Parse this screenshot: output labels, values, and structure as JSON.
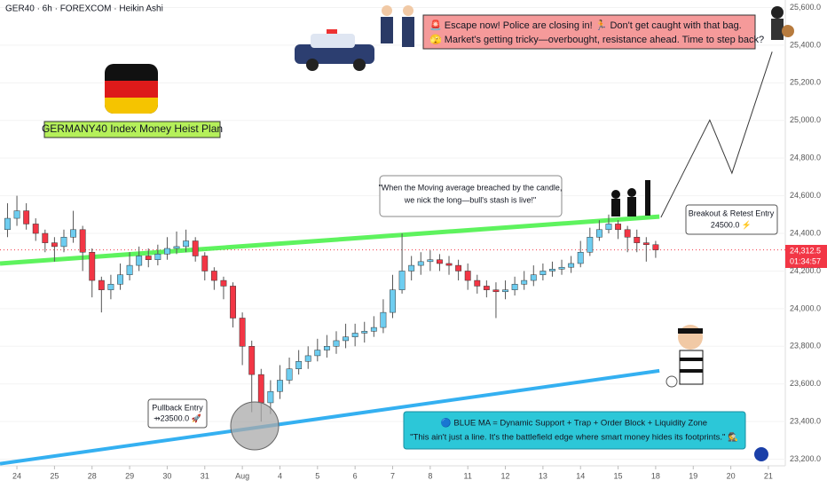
{
  "chart_data": {
    "type": "candlestick",
    "header": "GER40 · 6h · FOREXCOM · Heikin Ashi",
    "x": [
      -0.25,
      0,
      0.25,
      0.5,
      0.75,
      1,
      1.25,
      1.5,
      1.75,
      2,
      2.25,
      2.5,
      2.75,
      3,
      3.25,
      3.5,
      3.75,
      4,
      4.25,
      4.5,
      4.75,
      5,
      5.25,
      5.5,
      5.75,
      6,
      6.25,
      6.5,
      6.75,
      7,
      7.25,
      7.5,
      7.75,
      8,
      8.25,
      8.5,
      8.75,
      9,
      9.25,
      9.5,
      9.75,
      10,
      10.25,
      10.5,
      10.75,
      11,
      11.25,
      11.5,
      11.75,
      12,
      12.25,
      12.5,
      12.75,
      13,
      13.25,
      13.5,
      13.75,
      14,
      14.25,
      14.5,
      14.75,
      15,
      15.25,
      15.5,
      15.75,
      16,
      16.25,
      16.5,
      16.75,
      17
    ],
    "open": [
      24420,
      24480,
      24520,
      24450,
      24400,
      24350,
      24330,
      24380,
      24420,
      24300,
      24150,
      24100,
      24130,
      24180,
      24230,
      24280,
      24260,
      24290,
      24320,
      24330,
      24360,
      24280,
      24200,
      24150,
      24120,
      23950,
      23800,
      23650,
      23500,
      23560,
      23620,
      23680,
      23720,
      23750,
      23780,
      23800,
      23830,
      23850,
      23870,
      23880,
      23900,
      23980,
      24100,
      24200,
      24230,
      24250,
      24260,
      24240,
      24230,
      24200,
      24150,
      24120,
      24100,
      24090,
      24100,
      24130,
      24150,
      24180,
      24200,
      24210,
      24220,
      24240,
      24300,
      24380,
      24420,
      24450,
      24420,
      24380,
      24350,
      24340
    ],
    "high": [
      24560,
      24600,
      24560,
      24480,
      24420,
      24380,
      24420,
      24520,
      24440,
      24320,
      24170,
      24180,
      24240,
      24300,
      24330,
      24320,
      24340,
      24380,
      24410,
      24420,
      24380,
      24300,
      24220,
      24170,
      24140,
      23980,
      23830,
      23680,
      23620,
      23700,
      23740,
      23780,
      23800,
      23840,
      23860,
      23880,
      23920,
      23920,
      23930,
      23960,
      24050,
      24180,
      24400,
      24280,
      24300,
      24310,
      24290,
      24280,
      24260,
      24240,
      24180,
      24150,
      24140,
      24150,
      24170,
      24200,
      24230,
      24240,
      24250,
      24260,
      24280,
      24360,
      24430,
      24470,
      24500,
      24470,
      24440,
      24420,
      24380,
      24360
    ],
    "low": [
      24380,
      24440,
      24420,
      24360,
      24300,
      24250,
      24300,
      24350,
      24200,
      24060,
      23980,
      24050,
      24100,
      24150,
      24200,
      24220,
      24230,
      24260,
      24290,
      24300,
      24250,
      24150,
      24100,
      24050,
      23900,
      23700,
      23450,
      23400,
      23440,
      23520,
      23600,
      23650,
      23680,
      23720,
      23740,
      23760,
      23790,
      23800,
      23820,
      23850,
      23870,
      23950,
      24080,
      24150,
      24180,
      24200,
      24200,
      24180,
      24150,
      24100,
      24080,
      24060,
      23950,
      24050,
      24070,
      24100,
      24120,
      24150,
      24170,
      24180,
      24190,
      24220,
      24280,
      24360,
      24400,
      24370,
      24300,
      24300,
      24250,
      24270
    ],
    "close": [
      24480,
      24520,
      24450,
      24400,
      24350,
      24330,
      24380,
      24420,
      24300,
      24150,
      24100,
      24130,
      24180,
      24230,
      24280,
      24260,
      24290,
      24320,
      24330,
      24360,
      24280,
      24200,
      24150,
      24120,
      23950,
      23800,
      23650,
      23500,
      23560,
      23620,
      23680,
      23720,
      23750,
      23780,
      23800,
      23830,
      23850,
      23870,
      23880,
      23900,
      23980,
      24100,
      24200,
      24230,
      24250,
      24260,
      24240,
      24230,
      24200,
      24150,
      24120,
      24100,
      24090,
      24100,
      24130,
      24150,
      24180,
      24200,
      24210,
      24220,
      24240,
      24300,
      24380,
      24420,
      24450,
      24420,
      24380,
      24350,
      24340,
      24312.5
    ],
    "up_color": "#6ecdf0",
    "down_color": "#f23645",
    "xlim": [
      -0.45,
      20.45
    ],
    "ylim": [
      23165,
      25640
    ],
    "xticks": [
      {
        "value": 0,
        "label": "24"
      },
      {
        "value": 1,
        "label": "25"
      },
      {
        "value": 2,
        "label": "28"
      },
      {
        "value": 3,
        "label": "29"
      },
      {
        "value": 4,
        "label": "30"
      },
      {
        "value": 5,
        "label": "31"
      },
      {
        "value": 6,
        "label": "Aug"
      },
      {
        "value": 7,
        "label": "4"
      },
      {
        "value": 8,
        "label": "5"
      },
      {
        "value": 9,
        "label": "6"
      },
      {
        "value": 10,
        "label": "7"
      },
      {
        "value": 11,
        "label": "8"
      },
      {
        "value": 12,
        "label": "11"
      },
      {
        "value": 13,
        "label": "12"
      },
      {
        "value": 14,
        "label": "13"
      },
      {
        "value": 15,
        "label": "14"
      },
      {
        "value": 16,
        "label": "15"
      },
      {
        "value": 17,
        "label": "18"
      },
      {
        "value": 18,
        "label": "19"
      },
      {
        "value": 19,
        "label": "20"
      },
      {
        "value": 20,
        "label": "21"
      }
    ],
    "yticks": [
      {
        "value": 23200,
        "label": "23,200.0"
      },
      {
        "value": 23400,
        "label": "23,400.0"
      },
      {
        "value": 23600,
        "label": "23,600.0"
      },
      {
        "value": 23800,
        "label": "23,800.0"
      },
      {
        "value": 24000,
        "label": "24,000.0"
      },
      {
        "value": 24200,
        "label": "24,200.0"
      },
      {
        "value": 24400,
        "label": "24,400.0"
      },
      {
        "value": 24600,
        "label": "24,600.0"
      },
      {
        "value": 24800,
        "label": "24,800.0"
      },
      {
        "value": 25000,
        "label": "25,000.0"
      },
      {
        "value": 25200,
        "label": "25,200.0"
      },
      {
        "value": 25400,
        "label": "25,400.0"
      },
      {
        "value": 25600,
        "label": "25,600.0"
      }
    ],
    "last_price": {
      "value": 24312.5,
      "label": "24,312.5"
    },
    "countdown": "01:34:57",
    "lines": [
      {
        "color": "#4cf24c",
        "width": 5,
        "x": [
          -0.45,
          17.1
        ],
        "values": [
          24240,
          24489
        ]
      },
      {
        "color": "#1ea7f0",
        "width": 4,
        "x": [
          -0.45,
          17.1
        ],
        "values": [
          23176,
          23670
        ]
      },
      {
        "color": "#222",
        "width": 1,
        "x": [
          17.14,
          18.44,
          19.03,
          20.1
        ],
        "values": [
          24485,
          25002,
          24720,
          25365
        ]
      }
    ],
    "annotations": {
      "plan": "GERMANY40 Index Money Heist Plan",
      "police": [
        "🚨 Escape now! Police are closing in! 🏃 Don't get caught with that bag.",
        "🫣 Market's getting tricky—overbought, resistance ahead. Time to step back?"
      ],
      "quote": [
        "\"When the Moving average breached by the candle,",
        "we nick the long—bull's stash is live!\""
      ],
      "breakout": [
        "Breakout & Retest Entry",
        "24500.0 ⚡"
      ],
      "pullback": [
        "Pullback Entry",
        "⇸23500.0 🚀"
      ],
      "blue": [
        "🔵 BLUE MA = Dynamic Support + Trap + Order Block + Liquidity Zone",
        "\"This ain't just a line. It's the battlefield edge where smart money hides its footprints.\" 🕵"
      ]
    }
  }
}
